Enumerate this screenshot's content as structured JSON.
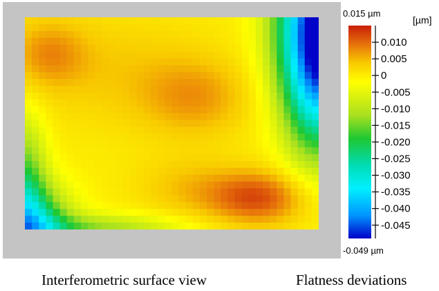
{
  "captions": {
    "left": "Interferometric surface view",
    "right": "Flatness deviations"
  },
  "chart_data": {
    "type": "heatmap",
    "title": "",
    "unit": "[µm]",
    "range_labels": {
      "max": "0.015 µm",
      "min": "-0.049 µm"
    },
    "zlim": [
      -0.049,
      0.015
    ],
    "colorbar_ticks": [
      0.01,
      0.005,
      0,
      -0.005,
      -0.01,
      -0.015,
      -0.02,
      -0.025,
      -0.03,
      -0.035,
      -0.04,
      -0.045
    ],
    "colorbar_tick_labels": [
      "0.010",
      "0.005",
      "0",
      "-0.005",
      "-0.010",
      "-0.015",
      "-0.020",
      "-0.025",
      "-0.030",
      "-0.035",
      "-0.040",
      "-0.045"
    ],
    "colormap": [
      {
        "value": 0.015,
        "color": "#c81e0a"
      },
      {
        "value": 0.009,
        "color": "#e8780a"
      },
      {
        "value": 0.004,
        "color": "#f8c800"
      },
      {
        "value": -0.002,
        "color": "#ffff00"
      },
      {
        "value": -0.012,
        "color": "#a8e020"
      },
      {
        "value": -0.019,
        "color": "#1ec832"
      },
      {
        "value": -0.027,
        "color": "#00dcb4"
      },
      {
        "value": -0.034,
        "color": "#00f0ff"
      },
      {
        "value": -0.042,
        "color": "#0096ff"
      },
      {
        "value": -0.049,
        "color": "#0000c8"
      }
    ],
    "grid_cols": 42,
    "grid_rows": 31,
    "surface_model": {
      "base": 0.0,
      "bumps": [
        {
          "cx": 0.08,
          "cy": 0.17,
          "sx": 0.09,
          "sy": 0.11,
          "amp": 0.0065
        },
        {
          "cx": 0.58,
          "cy": 0.38,
          "sx": 0.13,
          "sy": 0.13,
          "amp": 0.0065
        },
        {
          "cx": 0.79,
          "cy": 0.85,
          "sx": 0.12,
          "sy": 0.09,
          "amp": 0.012
        },
        {
          "cx": 0.55,
          "cy": 0.8,
          "sx": 0.12,
          "sy": 0.1,
          "amp": 0.004
        },
        {
          "cx": 0.3,
          "cy": 0.25,
          "sx": 0.22,
          "sy": 0.18,
          "amp": 0.0035
        }
      ],
      "corners": [
        {
          "cx": 1.0,
          "cy": 0.0,
          "sx": 0.1,
          "sy": 0.3,
          "amp": -0.045
        },
        {
          "cx": 1.0,
          "cy": 0.35,
          "sx": 0.08,
          "sy": 0.25,
          "amp": -0.02
        },
        {
          "cx": 0.0,
          "cy": 1.0,
          "sx": 0.1,
          "sy": 0.14,
          "amp": -0.032
        },
        {
          "cx": 0.0,
          "cy": 0.75,
          "sx": 0.05,
          "sy": 0.2,
          "amp": -0.015
        },
        {
          "cx": 0.25,
          "cy": 1.0,
          "sx": 0.2,
          "sy": 0.05,
          "amp": -0.012
        }
      ]
    }
  }
}
